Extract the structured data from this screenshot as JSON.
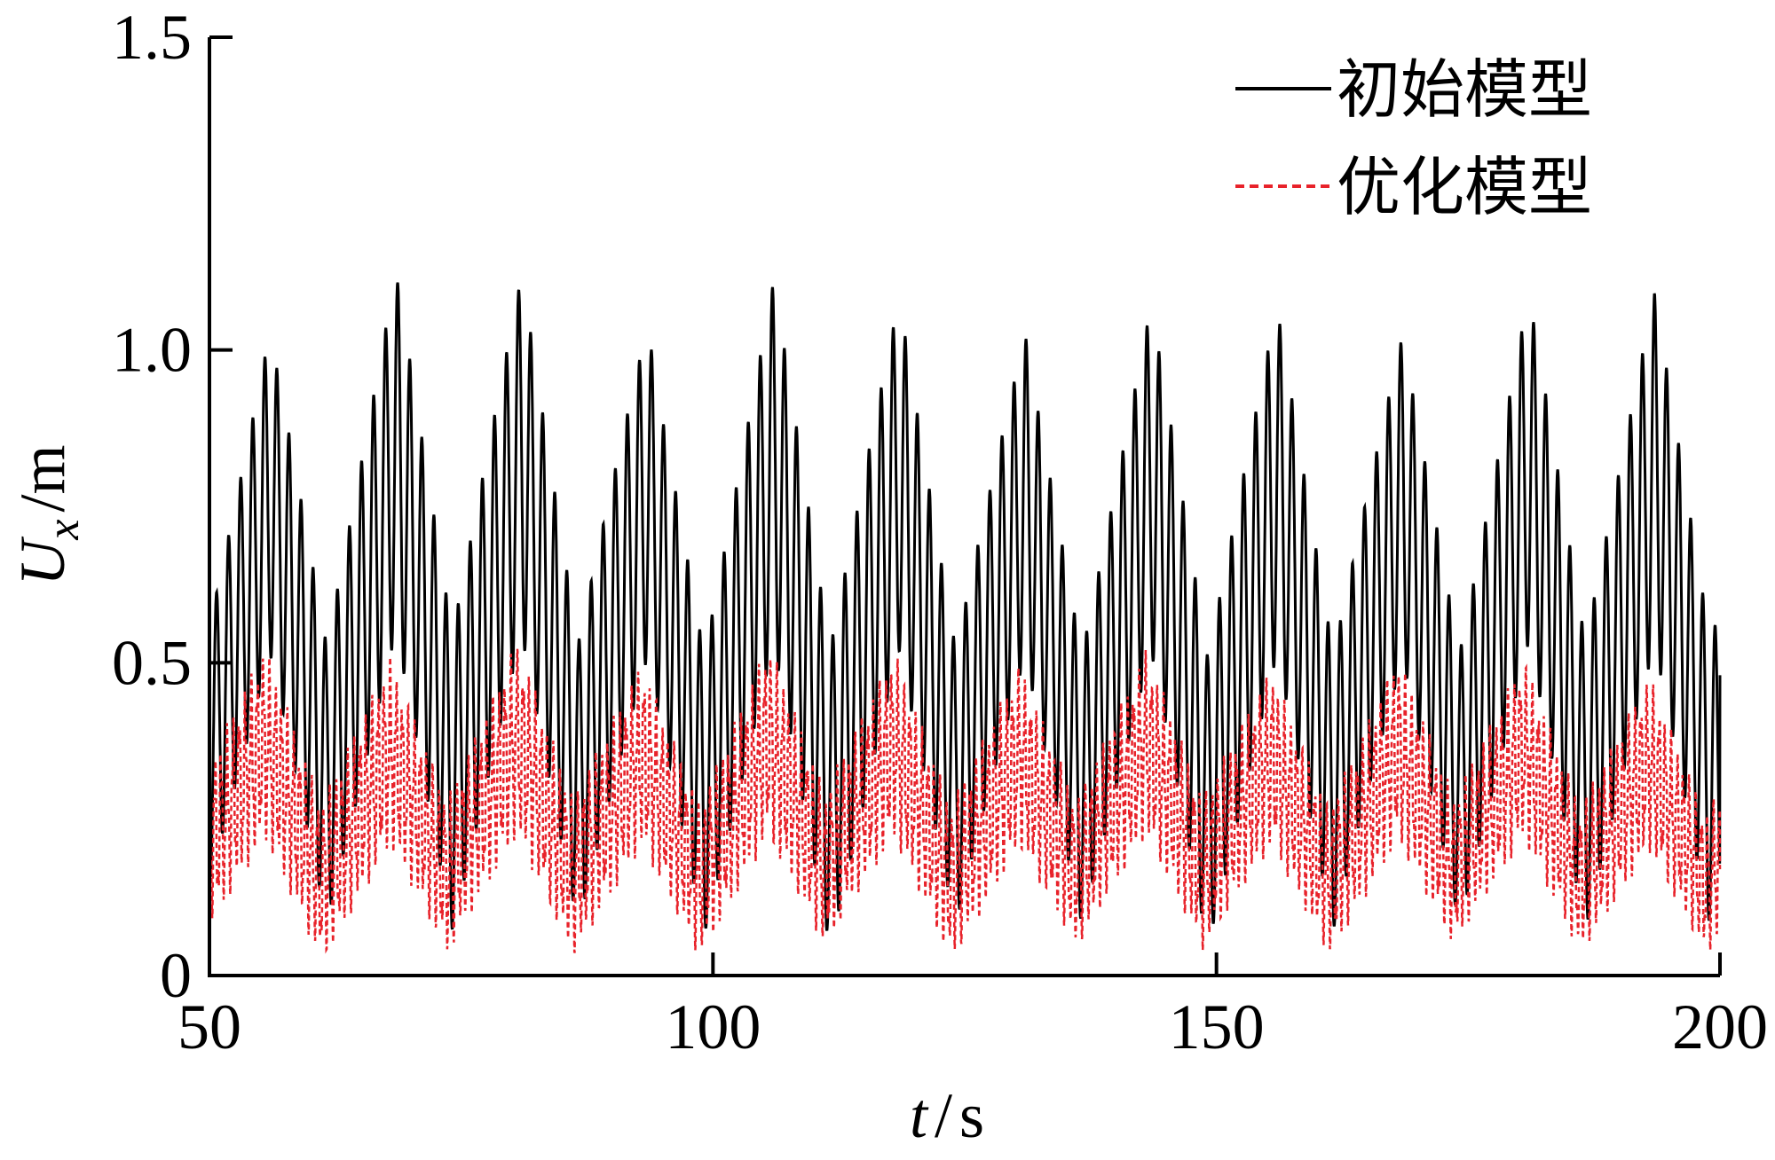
{
  "chart_data": {
    "type": "line",
    "title": "",
    "xlabel": {
      "var": "t",
      "unit": "s"
    },
    "ylabel": {
      "var": "U",
      "sub": "x",
      "unit": "m"
    },
    "xlim": [
      50,
      200
    ],
    "ylim": [
      0,
      1.5
    ],
    "xticks": [
      50,
      100,
      150,
      200
    ],
    "xtick_labels": [
      "50",
      "100",
      "150",
      "200"
    ],
    "yticks": [
      0,
      0.5,
      1.0,
      1.5
    ],
    "ytick_labels": [
      "0",
      "0.5",
      "1.0",
      "1.5"
    ],
    "grid": false,
    "legend_position": "top-right",
    "series": [
      {
        "name": "初始模型",
        "color": "#000000",
        "style": "solid",
        "envelope_period_s": 12.5,
        "oscillation_period_s": 1.2,
        "upper_peaks": [
          {
            "t": 56.0,
            "y": 1.03
          },
          {
            "t": 69.0,
            "y": 1.13
          },
          {
            "t": 82.0,
            "y": 1.12
          },
          {
            "t": 95.0,
            "y": 1.03
          },
          {
            "t": 107.5,
            "y": 1.12
          },
          {
            "t": 119.5,
            "y": 1.08
          },
          {
            "t": 132.5,
            "y": 1.02
          },
          {
            "t": 145.0,
            "y": 1.08
          },
          {
            "t": 157.5,
            "y": 1.07
          },
          {
            "t": 170.0,
            "y": 1.02
          },
          {
            "t": 182.5,
            "y": 1.1
          },
          {
            "t": 195.5,
            "y": 1.09
          }
        ],
        "lower_troughs": [
          {
            "t": 51.5,
            "y": 0.1
          },
          {
            "t": 64.0,
            "y": 0.08
          },
          {
            "t": 77.0,
            "y": 0.07
          },
          {
            "t": 89.5,
            "y": 0.08
          },
          {
            "t": 102.0,
            "y": 0.06
          },
          {
            "t": 114.0,
            "y": 0.04
          },
          {
            "t": 126.5,
            "y": 0.09
          },
          {
            "t": 139.0,
            "y": 0.08
          },
          {
            "t": 151.0,
            "y": 0.04
          },
          {
            "t": 163.5,
            "y": 0.08
          },
          {
            "t": 176.5,
            "y": 0.08
          },
          {
            "t": 189.0,
            "y": 0.07
          }
        ],
        "end_value": {
          "t": 200,
          "y": 0.48
        }
      },
      {
        "name": "优化模型",
        "color": "#e8222a",
        "style": "dashed",
        "envelope_period_s": 12.5,
        "oscillation_period_s": 0.6,
        "upper_peaks": [
          {
            "t": 55.5,
            "y": 0.49
          },
          {
            "t": 69.0,
            "y": 0.47
          },
          {
            "t": 82.0,
            "y": 0.5
          },
          {
            "t": 94.5,
            "y": 0.46
          },
          {
            "t": 107.0,
            "y": 0.5
          },
          {
            "t": 119.5,
            "y": 0.48
          },
          {
            "t": 132.0,
            "y": 0.46
          },
          {
            "t": 145.0,
            "y": 0.49
          },
          {
            "t": 157.5,
            "y": 0.45
          },
          {
            "t": 170.0,
            "y": 0.48
          },
          {
            "t": 182.5,
            "y": 0.47
          },
          {
            "t": 195.5,
            "y": 0.44
          }
        ],
        "lower_troughs": [
          {
            "t": 51.5,
            "y": 0.07
          },
          {
            "t": 63.5,
            "y": 0.05
          },
          {
            "t": 76.5,
            "y": 0.07
          },
          {
            "t": 89.5,
            "y": 0.06
          },
          {
            "t": 101.0,
            "y": 0.06
          },
          {
            "t": 113.5,
            "y": 0.08
          },
          {
            "t": 126.0,
            "y": 0.05
          },
          {
            "t": 139.0,
            "y": 0.08
          },
          {
            "t": 151.0,
            "y": 0.07
          },
          {
            "t": 163.5,
            "y": 0.06
          },
          {
            "t": 176.0,
            "y": 0.08
          },
          {
            "t": 189.0,
            "y": 0.06
          }
        ],
        "end_value": {
          "t": 200,
          "y": 0.17
        }
      }
    ]
  }
}
